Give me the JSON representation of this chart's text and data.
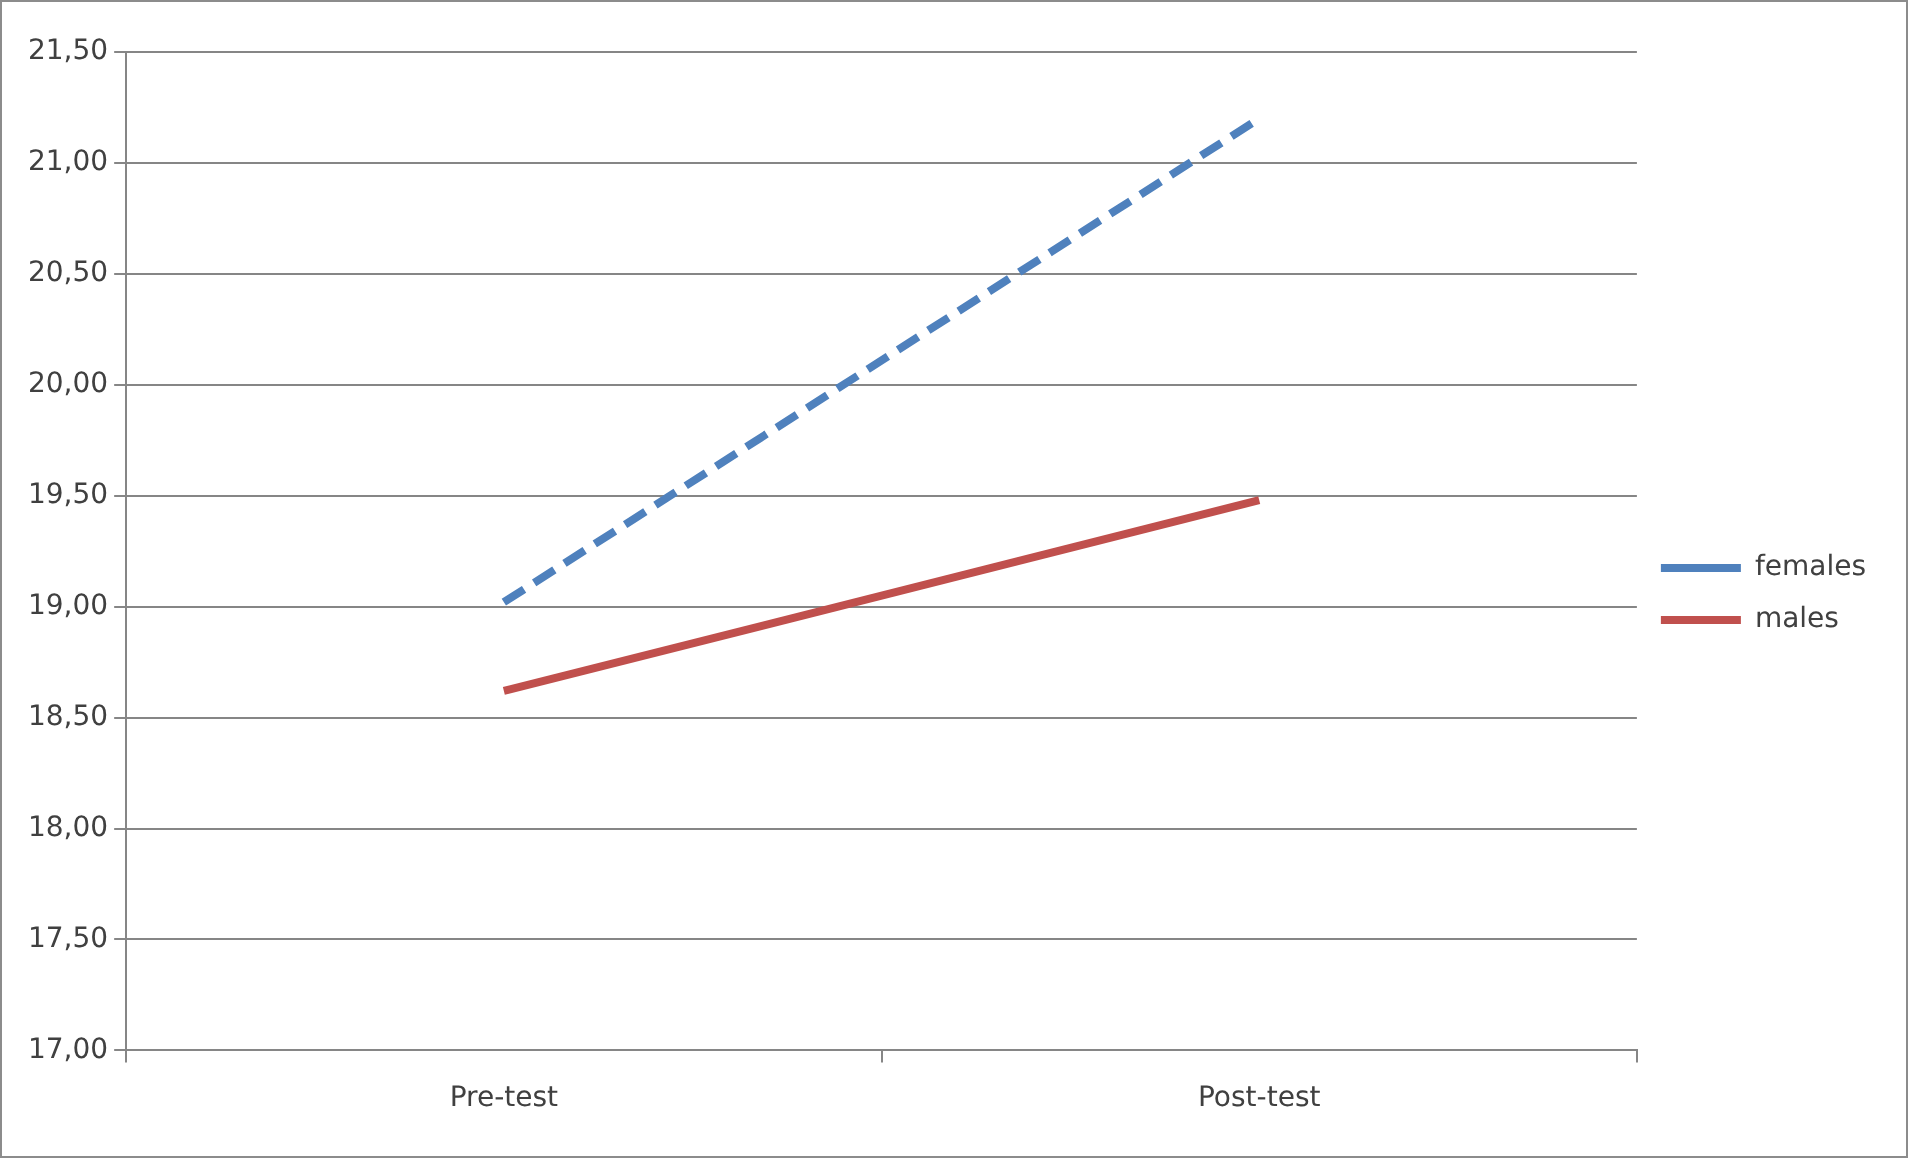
{
  "chart_data": {
    "type": "line",
    "categories": [
      "Pre-test",
      "Post-test"
    ],
    "series": [
      {
        "name": "females",
        "color": "#4f81bd",
        "values": [
          19.02,
          21.2
        ],
        "line_style": "dashed"
      },
      {
        "name": "males",
        "color": "#c0504d",
        "values": [
          18.62,
          19.48
        ],
        "line_style": "solid"
      }
    ],
    "ylim": [
      17,
      21.5
    ],
    "yticks": [
      {
        "value": 17,
        "label": "17,00"
      },
      {
        "value": 17.5,
        "label": "17,50"
      },
      {
        "value": 18,
        "label": "18,00"
      },
      {
        "value": 18.5,
        "label": "18,50"
      },
      {
        "value": 19,
        "label": "19,00"
      },
      {
        "value": 19.5,
        "label": "19,50"
      },
      {
        "value": 20,
        "label": "20,00"
      },
      {
        "value": 20.5,
        "label": "20,50"
      },
      {
        "value": 21,
        "label": "21,00"
      },
      {
        "value": 21.5,
        "label": "21,50"
      }
    ],
    "grid": "y",
    "legend": "right",
    "marker": "none"
  }
}
